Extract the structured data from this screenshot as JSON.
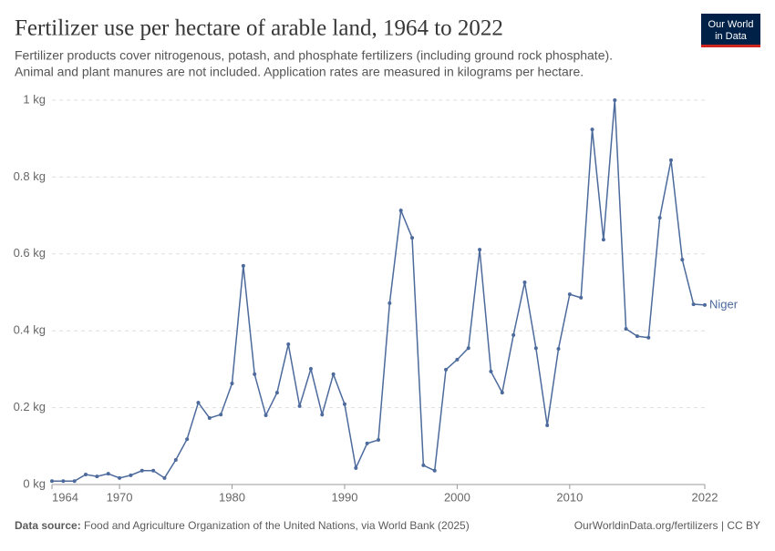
{
  "chart_data": {
    "type": "line",
    "title": "Fertilizer use per hectare of arable land, 1964 to 2022",
    "subtitle": [
      "Fertilizer products cover nitrogenous, potash, and phosphate fertilizers (including ground rock phosphate).",
      "Animal and plant manures are not included. Application rates are measured in kilograms per hectare."
    ],
    "x": [
      1964,
      1965,
      1966,
      1967,
      1968,
      1969,
      1970,
      1971,
      1972,
      1973,
      1974,
      1975,
      1976,
      1977,
      1978,
      1979,
      1980,
      1981,
      1982,
      1983,
      1984,
      1985,
      1986,
      1987,
      1988,
      1989,
      1990,
      1991,
      1992,
      1993,
      1994,
      1995,
      1996,
      1997,
      1998,
      1999,
      2000,
      2001,
      2002,
      2003,
      2004,
      2005,
      2006,
      2007,
      2008,
      2009,
      2010,
      2011,
      2012,
      2013,
      2014,
      2015,
      2016,
      2017,
      2018,
      2019,
      2020,
      2021,
      2022
    ],
    "series": [
      {
        "name": "Niger",
        "color": "#4c6a9c",
        "values": [
          0.009,
          0.009,
          0.009,
          0.026,
          0.021,
          0.028,
          0.017,
          0.024,
          0.036,
          0.036,
          0.017,
          0.064,
          0.118,
          0.213,
          0.173,
          0.182,
          0.263,
          0.569,
          0.287,
          0.18,
          0.239,
          0.365,
          0.204,
          0.301,
          0.182,
          0.287,
          0.209,
          0.043,
          0.107,
          0.116,
          0.472,
          0.713,
          0.642,
          0.05,
          0.036,
          0.299,
          0.325,
          0.355,
          0.611,
          0.294,
          0.239,
          0.389,
          0.526,
          0.355,
          0.154,
          0.353,
          0.495,
          0.486,
          0.924,
          0.637,
          1.0,
          0.405,
          0.386,
          0.382,
          0.694,
          0.844,
          0.585,
          0.469,
          0.467
        ]
      }
    ],
    "xlim": [
      1964,
      2022
    ],
    "xticks": [
      1964,
      1970,
      1980,
      1990,
      2000,
      2010,
      2022
    ],
    "ylim": [
      0,
      1
    ],
    "yticks": [
      {
        "value": 0,
        "label": "0 kg"
      },
      {
        "value": 0.2,
        "label": "0.2 kg"
      },
      {
        "value": 0.4,
        "label": "0.4 kg"
      },
      {
        "value": 0.6,
        "label": "0.6 kg"
      },
      {
        "value": 0.8,
        "label": "0.8 kg"
      },
      {
        "value": 1,
        "label": "1 kg"
      }
    ],
    "grid": true
  },
  "logo": [
    "Our World",
    "in Data"
  ],
  "footer": {
    "source_label": "Data source:",
    "source_text": "Food and Agriculture Organization of the United Nations, via World Bank (2025)",
    "url": "OurWorldinData.org/fertilizers | CC BY"
  }
}
